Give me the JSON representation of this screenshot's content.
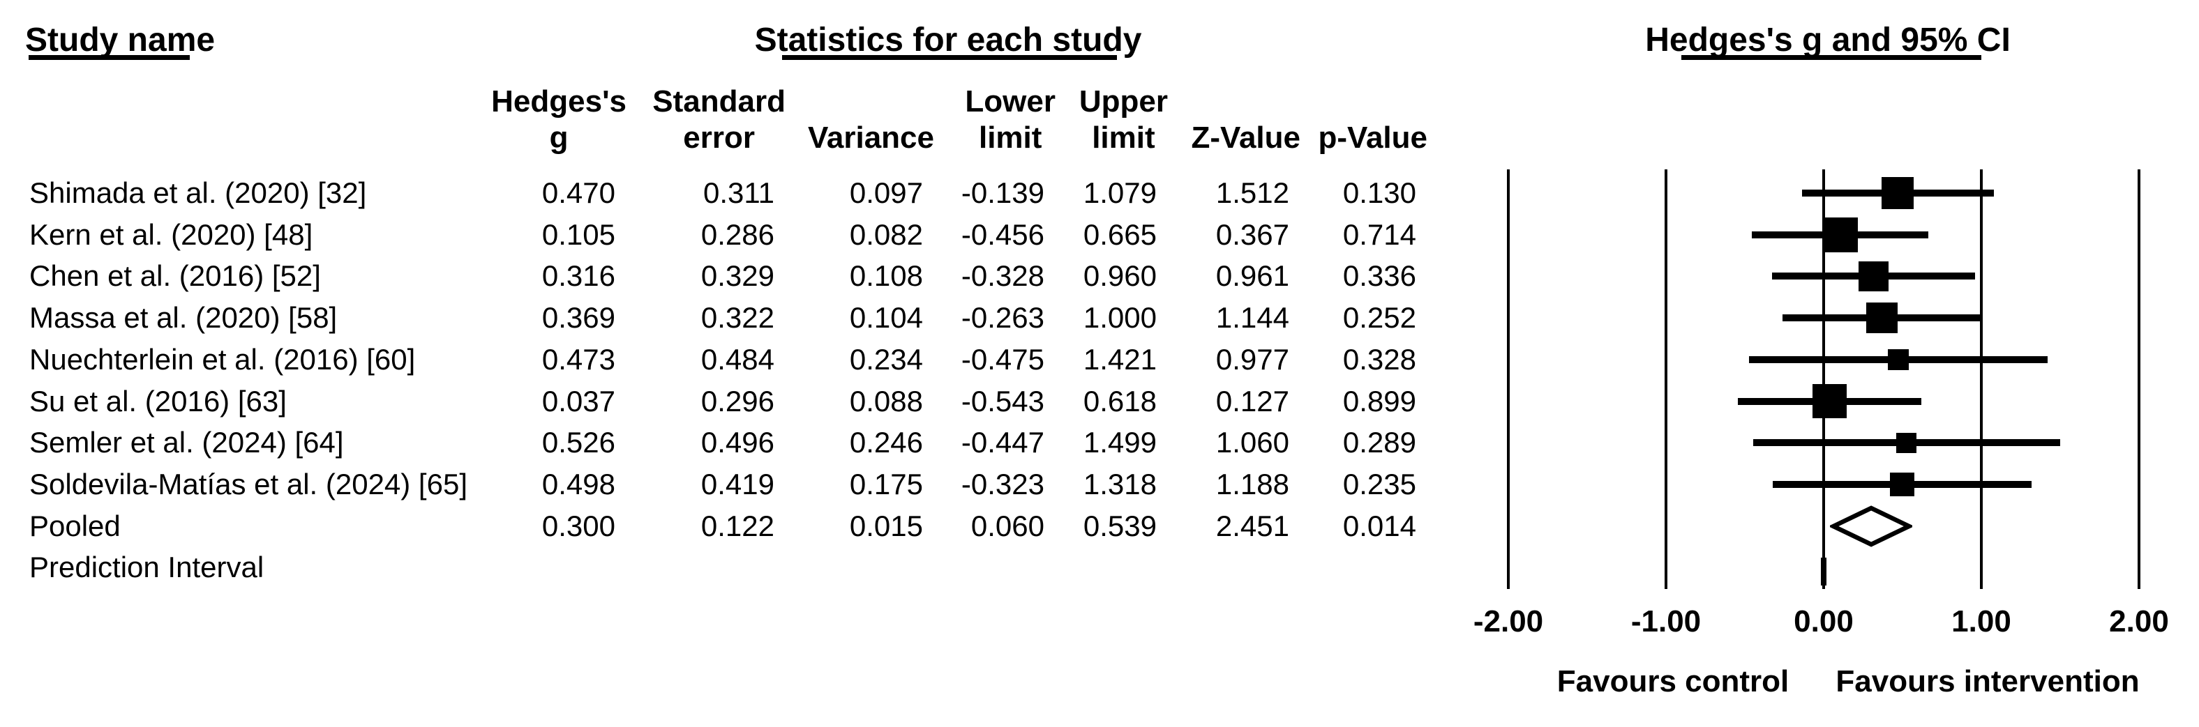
{
  "titles": {
    "study_col": "Study name",
    "stats": "Statistics for each study",
    "plot": "Hedges's g and 95% CI"
  },
  "table": {
    "column_headers": [
      {
        "id": "g",
        "line1": "Hedges's",
        "line2": "g"
      },
      {
        "id": "se",
        "line1": "Standard",
        "line2": "error"
      },
      {
        "id": "variance",
        "line1": "",
        "line2": "Variance"
      },
      {
        "id": "lower",
        "line1": "Lower",
        "line2": "limit"
      },
      {
        "id": "upper",
        "line1": "Upper",
        "line2": "limit"
      },
      {
        "id": "z",
        "line1": "",
        "line2": "Z-Value"
      },
      {
        "id": "p",
        "line1": "",
        "line2": "p-Value"
      }
    ]
  },
  "chart_data": {
    "type": "forest",
    "effect_measure": "Hedges's g",
    "studies": [
      {
        "name": "Shimada et al. (2020) [32]",
        "g": "0.470",
        "se": "0.311",
        "variance": "0.097",
        "lower": "-0.139",
        "upper": "1.079",
        "z": "1.512",
        "p": "0.130"
      },
      {
        "name": "Kern et al. (2020) [48]",
        "g": "0.105",
        "se": "0.286",
        "variance": "0.082",
        "lower": "-0.456",
        "upper": "0.665",
        "z": "0.367",
        "p": "0.714"
      },
      {
        "name": "Chen et al. (2016) [52]",
        "g": "0.316",
        "se": "0.329",
        "variance": "0.108",
        "lower": "-0.328",
        "upper": "0.960",
        "z": "0.961",
        "p": "0.336"
      },
      {
        "name": "Massa et al. (2020) [58]",
        "g": "0.369",
        "se": "0.322",
        "variance": "0.104",
        "lower": "-0.263",
        "upper": "1.000",
        "z": "1.144",
        "p": "0.252"
      },
      {
        "name": "Nuechterlein et al. (2016) [60]",
        "g": "0.473",
        "se": "0.484",
        "variance": "0.234",
        "lower": "-0.475",
        "upper": "1.421",
        "z": "0.977",
        "p": "0.328"
      },
      {
        "name": "Su et al. (2016) [63]",
        "g": "0.037",
        "se": "0.296",
        "variance": "0.088",
        "lower": "-0.543",
        "upper": "0.618",
        "z": "0.127",
        "p": "0.899"
      },
      {
        "name": "Semler et al. (2024) [64]",
        "g": "0.526",
        "se": "0.496",
        "variance": "0.246",
        "lower": "-0.447",
        "upper": "1.499",
        "z": "1.060",
        "p": "0.289"
      },
      {
        "name": "Soldevila-Matías et al. (2024) [65]",
        "g": "0.498",
        "se": "0.419",
        "variance": "0.175",
        "lower": "-0.323",
        "upper": "1.318",
        "z": "1.188",
        "p": "0.235"
      }
    ],
    "pooled": {
      "name": "Pooled",
      "g": "0.300",
      "se": "0.122",
      "variance": "0.015",
      "lower": "0.060",
      "upper": "0.539",
      "z": "2.451",
      "p": "0.014"
    },
    "prediction_interval": {
      "name": "Prediction Interval",
      "center": "0.00"
    },
    "axis": {
      "min": -2,
      "max": 2,
      "tick_values": [
        -2,
        -1,
        0,
        1,
        2
      ],
      "tick_labels": [
        "-2.00",
        "-1.00",
        "0.00",
        "1.00",
        "2.00"
      ],
      "favours_left": "Favours control",
      "favours_right": "Favours intervention"
    },
    "layout_hints": {
      "grid": "vertical-lines-at-ticks",
      "marker": "black-squares-by-weight",
      "pooled_marker": "open-diamond"
    },
    "colors": {
      "ink": "#000000",
      "background": "#ffffff"
    }
  }
}
